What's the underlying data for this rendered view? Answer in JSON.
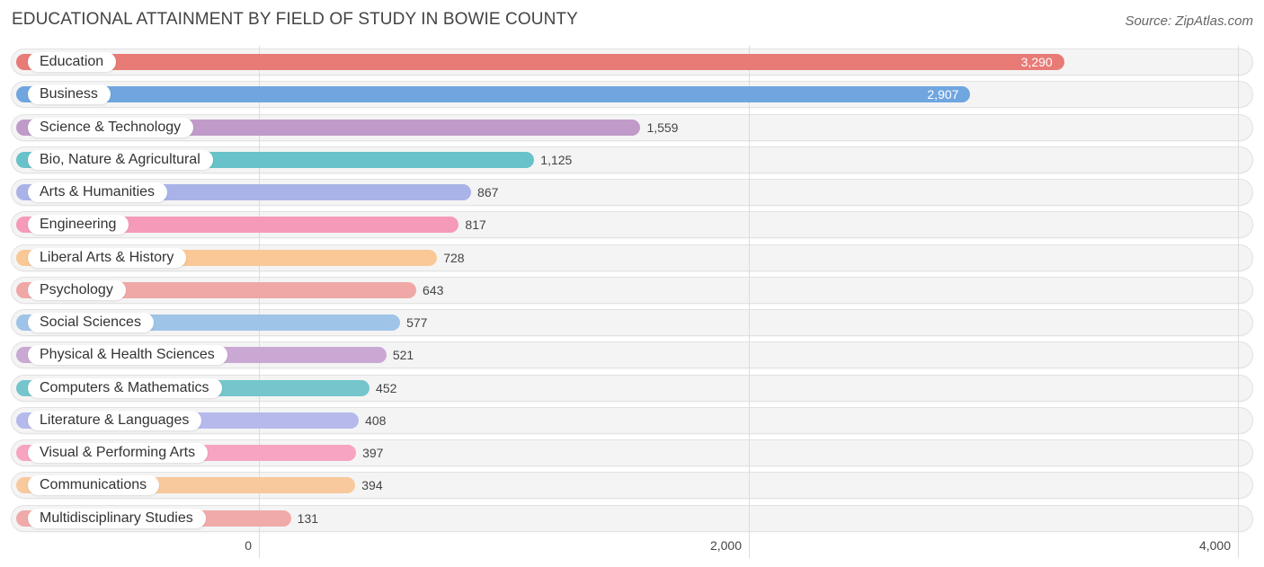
{
  "chart_data": {
    "type": "bar",
    "orientation": "horizontal",
    "title": "EDUCATIONAL ATTAINMENT BY FIELD OF STUDY IN BOWIE COUNTY",
    "source": "Source: ZipAtlas.com",
    "xlabel": "",
    "ylabel": "",
    "xlim": [
      0,
      4000
    ],
    "grid": true,
    "ticks": [
      {
        "value": 0,
        "label": "0"
      },
      {
        "value": 2000,
        "label": "2,000"
      },
      {
        "value": 4000,
        "label": "4,000"
      }
    ],
    "categories": [
      "Education",
      "Business",
      "Science & Technology",
      "Bio, Nature & Agricultural",
      "Arts & Humanities",
      "Engineering",
      "Liberal Arts & History",
      "Psychology",
      "Social Sciences",
      "Physical & Health Sciences",
      "Computers & Mathematics",
      "Literature & Languages",
      "Visual & Performing Arts",
      "Communications",
      "Multidisciplinary Studies"
    ],
    "values": [
      3290,
      2907,
      1559,
      1125,
      867,
      817,
      728,
      643,
      577,
      521,
      452,
      408,
      397,
      394,
      131
    ],
    "value_labels": [
      "3,290",
      "2,907",
      "1,559",
      "1,125",
      "867",
      "817",
      "728",
      "643",
      "577",
      "521",
      "452",
      "408",
      "397",
      "394",
      "131"
    ],
    "colors": [
      "#e87b76",
      "#6fa6e0",
      "#c09bc9",
      "#68c2ca",
      "#aab3e8",
      "#f59ab9",
      "#f9c896",
      "#efa8a6",
      "#9ec4e8",
      "#c9a9d3",
      "#74c6cc",
      "#b5b9ec",
      "#f6a4c1",
      "#f8c99c",
      "#f0aaa9"
    ]
  }
}
